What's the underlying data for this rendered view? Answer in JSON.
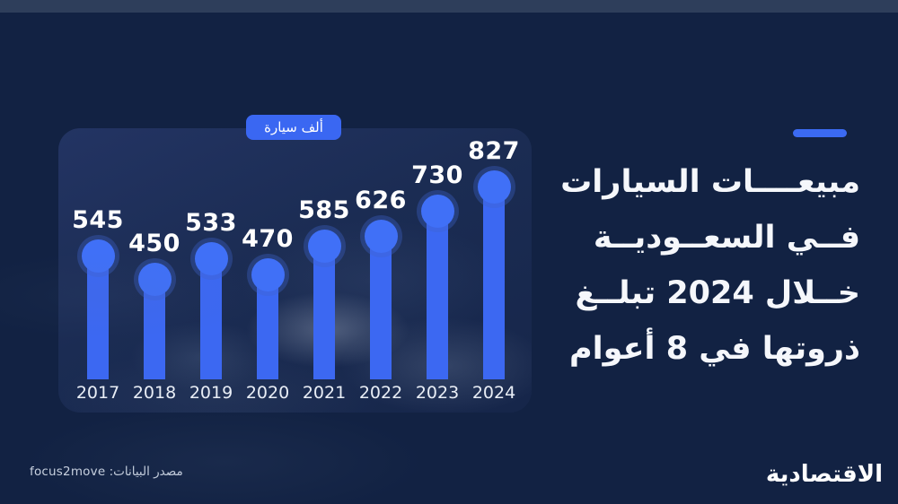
{
  "colors": {
    "background": "#122243",
    "top_strip": "#2e3e5b",
    "panel": "#1b2c53",
    "bar_blue": "#3c68f2",
    "badge_blue": "#3a67f2",
    "accent_blue": "#3b6af2",
    "value_label": "#ffffff",
    "axis_label": "#e9eef6",
    "source_text": "#c9d2e0"
  },
  "chart_data": {
    "type": "bar",
    "title": "",
    "unit_badge": "ألف سيارة",
    "categories": [
      "2017",
      "2018",
      "2019",
      "2020",
      "2021",
      "2022",
      "2023",
      "2024"
    ],
    "values": [
      545,
      450,
      533,
      470,
      585,
      626,
      730,
      827
    ],
    "value_labels_position": "above bars",
    "ylim": [
      450,
      827
    ],
    "grid": false,
    "legend": "none",
    "bar_style": "rounded column with circular cap"
  },
  "headline": {
    "lines": [
      "مبيعــــات السيارات",
      "فــي السعــوديــة",
      "خــلال 2024 تبلــغ",
      "ذروتها في 8 أعوام"
    ]
  },
  "source": {
    "text": "مصدر البيانات: focus2move"
  },
  "brand": {
    "wordmark": "الاقتصادية"
  }
}
